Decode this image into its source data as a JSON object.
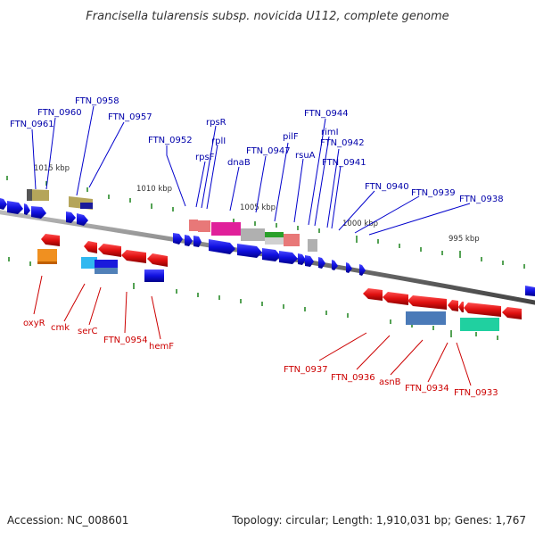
{
  "title": "Francisella tularensis subsp. novicida U112, complete genome",
  "footer": {
    "accession": "Accession: NC_008601",
    "topology": "Topology: circular; Length: 1,910,031 bp; Genes: 1,767"
  },
  "scale_labels": [
    "1015 kbp",
    "1010 kbp",
    "1005 kbp",
    "1000 kbp",
    "995 kbp"
  ],
  "top_genes": [
    "FTN_0961",
    "FTN_0960",
    "FTN_0958",
    "FTN_0957",
    "FTN_0952",
    "rpsF",
    "rpsR",
    "rplI",
    "dnaB",
    "FTN_0947",
    "pilF",
    "rsuA",
    "FTN_0944",
    "rimI",
    "FTN_0942",
    "FTN_0941",
    "FTN_0940",
    "FTN_0939",
    "FTN_0938"
  ],
  "bottom_genes": [
    "oxyR",
    "cmk",
    "serC",
    "FTN_0954",
    "hemF",
    "FTN_0937",
    "FTN_0936",
    "asnB",
    "FTN_0934",
    "FTN_0933"
  ],
  "colors": {
    "forward_strand": "#1010e0",
    "reverse_strand": "#e01010",
    "top_label": "#0000aa",
    "bottom_label": "#cc0000",
    "backbone": "#888888",
    "tick": "#2a8a2a"
  }
}
